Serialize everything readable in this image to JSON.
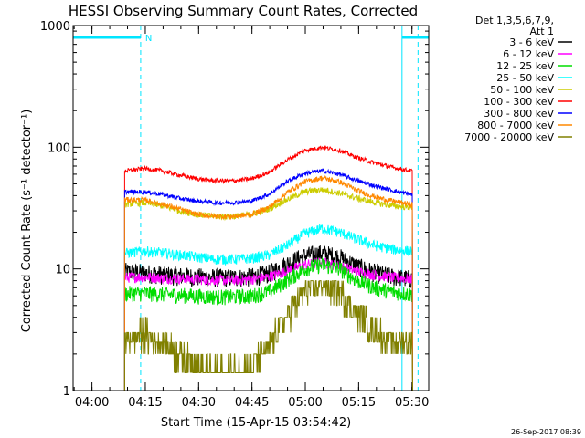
{
  "chart_data": {
    "type": "line",
    "title": "HESSI Observing Summary Count Rates, Corrected",
    "xlabel": "Start Time (15-Apr-15 03:54:42)",
    "ylabel": "Corrected Count Rate (s⁻¹ detector⁻¹)",
    "y_scale": "log",
    "ylim": [
      1,
      1000
    ],
    "xlim_minutes_after_0354": [
      0,
      100
    ],
    "x_ticks": [
      {
        "label": "04:00",
        "minute": 5.3
      },
      {
        "label": "04:15",
        "minute": 20.3
      },
      {
        "label": "04:30",
        "minute": 35.3
      },
      {
        "label": "04:45",
        "minute": 50.3
      },
      {
        "label": "05:00",
        "minute": 65.3
      },
      {
        "label": "05:15",
        "minute": 80.3
      },
      {
        "label": "05:30",
        "minute": 95.3
      }
    ],
    "y_ticks": [
      "1",
      "10",
      "100",
      "1000"
    ],
    "legend_header": [
      "Det 1,3,5,6,7,9,",
      "Att 1"
    ],
    "legend_position": "right",
    "annotations": [
      {
        "text": "N",
        "minute": 19.0
      }
    ],
    "night_intervals": [
      [
        0,
        19
      ],
      [
        92.5,
        100
      ]
    ],
    "saa_markers_minute": [
      0,
      19,
      92.5,
      97
    ],
    "data_start_minute": 14.5,
    "data_end_minute": 95.5,
    "footer_timestamp": "26-Sep-2017 08:39",
    "x": [
      15,
      20,
      25,
      30,
      35,
      40,
      45,
      50,
      55,
      60,
      65,
      70,
      75,
      80,
      85,
      90,
      95
    ],
    "series": [
      {
        "name": "3 - 6 keV",
        "color": "#000000",
        "values": [
          9.5,
          9.3,
          9.0,
          8.8,
          8.6,
          8.5,
          8.5,
          8.6,
          9.2,
          11.0,
          12.8,
          13.5,
          12.5,
          10.5,
          9.3,
          8.6,
          8.3
        ]
      },
      {
        "name": "6 - 12 keV",
        "color": "#ff00ff",
        "values": [
          8.5,
          8.6,
          8.4,
          8.3,
          8.2,
          8.1,
          8.1,
          8.2,
          8.6,
          9.6,
          10.8,
          11.3,
          10.6,
          9.5,
          8.9,
          8.5,
          8.3
        ]
      },
      {
        "name": "12 - 25 keV",
        "color": "#00dd00",
        "values": [
          6.3,
          6.3,
          6.2,
          6.1,
          6.0,
          5.9,
          5.9,
          6.0,
          6.5,
          8.0,
          10.0,
          10.8,
          10.0,
          8.0,
          7.0,
          6.5,
          6.2
        ]
      },
      {
        "name": "25 - 50 keV",
        "color": "#00ffff",
        "values": [
          13.5,
          14.0,
          13.6,
          13.0,
          12.5,
          12.0,
          12.0,
          12.2,
          13.0,
          15.5,
          19.5,
          21.5,
          20.0,
          17.5,
          15.5,
          14.5,
          14.0
        ]
      },
      {
        "name": "50 - 100 keV",
        "color": "#cccc00",
        "values": [
          34,
          35,
          33,
          30,
          28,
          27,
          27,
          28,
          31,
          37,
          43,
          45,
          42,
          38,
          35,
          33,
          32
        ]
      },
      {
        "name": "100 - 300 keV",
        "color": "#ff0000",
        "values": [
          64,
          67,
          64,
          59,
          55,
          53,
          53,
          55,
          62,
          78,
          94,
          100,
          94,
          82,
          74,
          68,
          64
        ]
      },
      {
        "name": "300 - 800 keV",
        "color": "#0000ff",
        "values": [
          43,
          43,
          41,
          38,
          36,
          35,
          35,
          36,
          41,
          52,
          61,
          64,
          60,
          53,
          48,
          44,
          41
        ]
      },
      {
        "name": "800 - 7000 keV",
        "color": "#ff8800",
        "values": [
          37,
          37,
          34,
          31,
          28,
          27,
          27,
          28,
          32,
          42,
          52,
          56,
          52,
          44,
          39,
          36,
          34
        ]
      },
      {
        "name": "7000 - 20000 keV",
        "color": "#808000",
        "values": [
          2.7,
          2.8,
          2.5,
          2.0,
          1.5,
          1.4,
          1.4,
          1.5,
          2.2,
          4.0,
          6.5,
          7.5,
          6.5,
          4.2,
          3.0,
          2.5,
          2.5
        ]
      }
    ]
  }
}
